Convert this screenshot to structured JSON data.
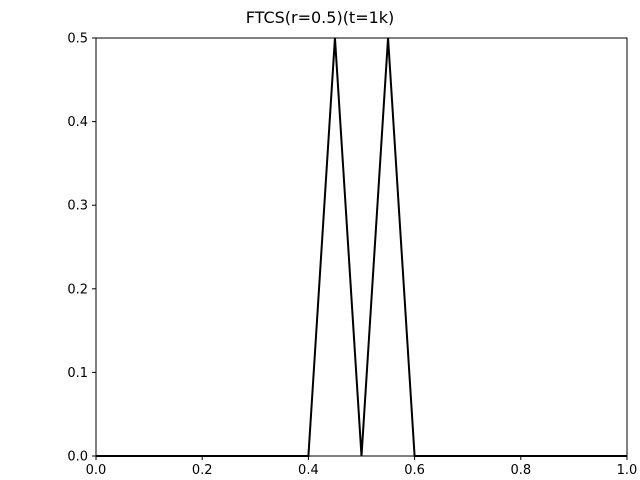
{
  "chart_data": {
    "type": "line",
    "title": "FTCS(r=0.5)(t=1k)",
    "xlabel": "",
    "ylabel": "",
    "xlim": [
      0.0,
      1.0
    ],
    "ylim": [
      0.0,
      0.5
    ],
    "xticks": [
      0.0,
      0.2,
      0.4,
      0.6,
      0.8,
      1.0
    ],
    "xtick_labels": [
      "0.0",
      "0.2",
      "0.4",
      "0.6",
      "0.8",
      "1.0"
    ],
    "yticks": [
      0.0,
      0.1,
      0.2,
      0.3,
      0.4,
      0.5
    ],
    "ytick_labels": [
      "0.0",
      "0.1",
      "0.2",
      "0.3",
      "0.4",
      "0.5"
    ],
    "grid": false,
    "series": [
      {
        "color": "#000000",
        "x": [
          0.0,
          0.05,
          0.1,
          0.15,
          0.2,
          0.25,
          0.3,
          0.35,
          0.4,
          0.45,
          0.5,
          0.55,
          0.6,
          0.65,
          0.7,
          0.75,
          0.8,
          0.85,
          0.9,
          0.95,
          1.0
        ],
        "y": [
          0.0,
          0.0,
          0.0,
          0.0,
          0.0,
          0.0,
          0.0,
          0.0,
          0.0,
          0.5,
          0.0,
          0.5,
          0.0,
          0.0,
          0.0,
          0.0,
          0.0,
          0.0,
          0.0,
          0.0,
          0.0
        ]
      }
    ]
  }
}
